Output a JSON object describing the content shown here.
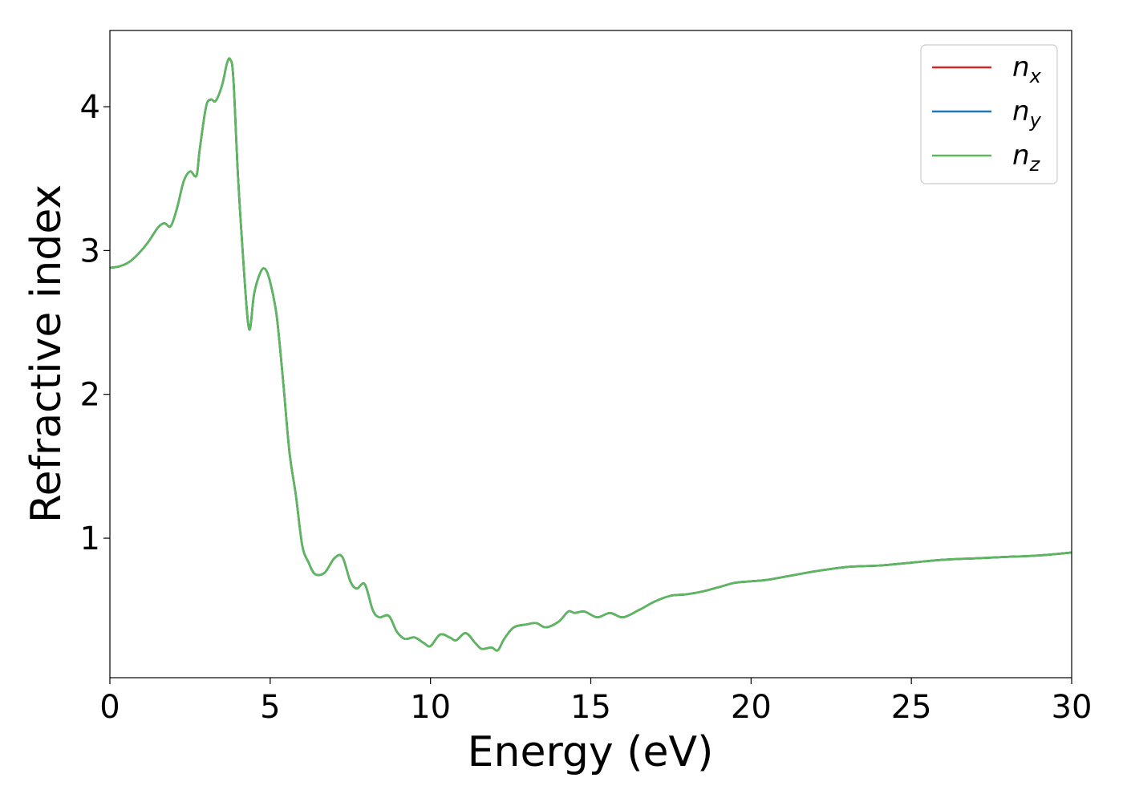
{
  "chart_data": {
    "type": "line",
    "title": "",
    "xlabel": "Energy (eV)",
    "ylabel": "Refractive index",
    "xlim": [
      0,
      30
    ],
    "ylim": [
      0.03,
      4.53
    ],
    "xticks": [
      0,
      5,
      10,
      15,
      20,
      25,
      30
    ],
    "yticks": [
      1,
      2,
      3,
      4
    ],
    "grid": false,
    "legend_position": "top-right",
    "colors": {
      "n_x": "#d62728",
      "n_y": "#1f77b4",
      "n_z": "#5cb85c"
    },
    "series": [
      {
        "name": "n_x",
        "name_base": "n",
        "name_sub": "x",
        "color": "#d62728"
      },
      {
        "name": "n_y",
        "name_base": "n",
        "name_sub": "y",
        "color": "#1f77b4"
      },
      {
        "name": "n_z",
        "name_base": "n",
        "name_sub": "z",
        "color": "#5cb85c"
      }
    ],
    "x": [
      0.0,
      0.3,
      0.6,
      0.9,
      1.2,
      1.5,
      1.7,
      1.9,
      2.1,
      2.3,
      2.5,
      2.7,
      2.8,
      3.0,
      3.15,
      3.3,
      3.5,
      3.65,
      3.75,
      3.85,
      4.0,
      4.2,
      4.35,
      4.5,
      4.7,
      4.85,
      5.0,
      5.2,
      5.4,
      5.6,
      5.8,
      6.0,
      6.2,
      6.4,
      6.7,
      7.0,
      7.25,
      7.5,
      7.7,
      7.95,
      8.2,
      8.4,
      8.7,
      8.95,
      9.2,
      9.5,
      9.8,
      10.0,
      10.3,
      10.6,
      10.8,
      11.1,
      11.4,
      11.6,
      11.9,
      12.1,
      12.3,
      12.6,
      13.0,
      13.3,
      13.6,
      14.0,
      14.3,
      14.5,
      14.8,
      15.2,
      15.6,
      16.0,
      16.5,
      17.0,
      17.5,
      18.0,
      18.5,
      19.0,
      19.5,
      20.0,
      20.5,
      21.0,
      21.5,
      22.0,
      23.0,
      24.0,
      25.0,
      26.0,
      27.0,
      28.0,
      29.0,
      30.0
    ],
    "values": [
      2.88,
      2.89,
      2.92,
      2.98,
      3.06,
      3.16,
      3.19,
      3.17,
      3.3,
      3.48,
      3.55,
      3.52,
      3.7,
      4.0,
      4.05,
      4.04,
      4.15,
      4.3,
      4.33,
      4.2,
      3.5,
      2.8,
      2.45,
      2.7,
      2.85,
      2.87,
      2.78,
      2.55,
      2.1,
      1.6,
      1.3,
      0.95,
      0.83,
      0.75,
      0.76,
      0.86,
      0.87,
      0.7,
      0.65,
      0.68,
      0.5,
      0.45,
      0.46,
      0.35,
      0.3,
      0.31,
      0.27,
      0.25,
      0.33,
      0.31,
      0.29,
      0.34,
      0.27,
      0.23,
      0.24,
      0.22,
      0.3,
      0.38,
      0.4,
      0.41,
      0.38,
      0.42,
      0.49,
      0.48,
      0.49,
      0.45,
      0.48,
      0.45,
      0.5,
      0.56,
      0.6,
      0.61,
      0.63,
      0.66,
      0.69,
      0.7,
      0.71,
      0.73,
      0.75,
      0.77,
      0.8,
      0.81,
      0.83,
      0.85,
      0.86,
      0.87,
      0.88,
      0.9
    ]
  }
}
